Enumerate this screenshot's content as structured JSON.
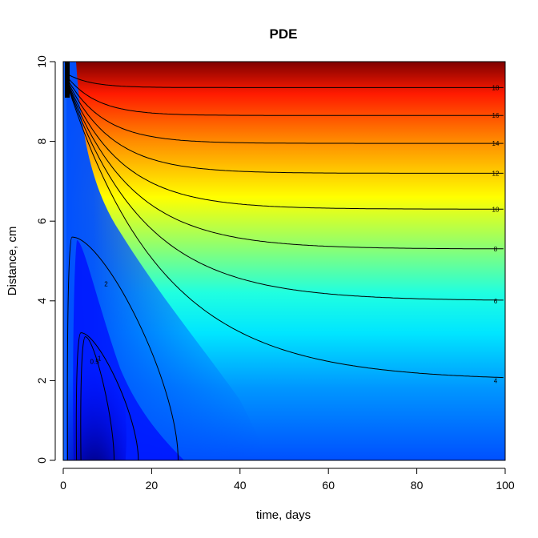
{
  "chart_data": {
    "type": "heatmap",
    "title": "PDE",
    "xlabel": "time, days",
    "ylabel": "Distance, cm",
    "xlim": [
      0,
      100
    ],
    "ylim": [
      0,
      10
    ],
    "x_ticks": [
      0,
      20,
      40,
      60,
      80,
      100
    ],
    "y_ticks": [
      0,
      2,
      4,
      6,
      8,
      10
    ],
    "colormap": [
      "#00007F",
      "#0000FF",
      "#007FFF",
      "#00FFFF",
      "#7FFF7F",
      "#FFFF00",
      "#FF7F00",
      "#FF0000",
      "#7F0000"
    ],
    "value_range": [
      0,
      20
    ],
    "contour_levels": [
      {
        "label": "18",
        "value": 18,
        "steady_y": 9.35
      },
      {
        "label": "16",
        "value": 16,
        "steady_y": 8.65
      },
      {
        "label": "14",
        "value": 14,
        "steady_y": 7.95
      },
      {
        "label": "12",
        "value": 12,
        "steady_y": 7.2
      },
      {
        "label": "10",
        "value": 10,
        "steady_y": 6.3
      },
      {
        "label": "8",
        "value": 8,
        "steady_y": 5.3
      },
      {
        "label": "6",
        "value": 6,
        "steady_y": 4.0
      },
      {
        "label": "4",
        "value": 4,
        "steady_y": 2.0
      }
    ],
    "low_contours": [
      {
        "label": "2",
        "x_bottom": 26
      },
      {
        "label": "1",
        "x_bottom": 17
      },
      {
        "label": "0.5",
        "x_bottom": 11.5
      }
    ]
  }
}
